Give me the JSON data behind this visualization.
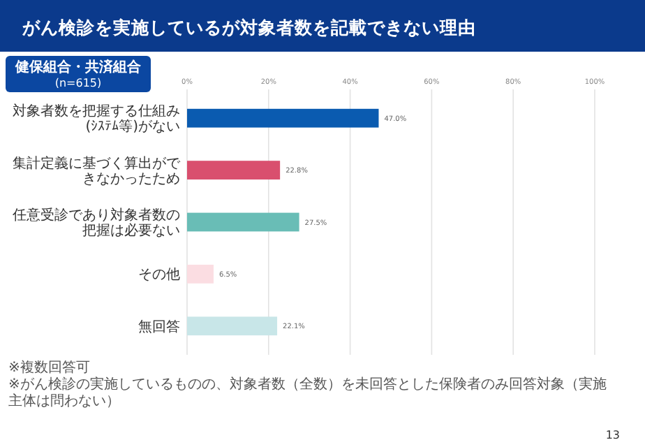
{
  "chart_data": {
    "type": "bar",
    "orientation": "horizontal",
    "title": "がん検診を実施しているが対象者数を記載できない理由",
    "subtitle": "健保組合・共済組合\n(n=615)",
    "categories": [
      "対象者数を把握する仕組み(ｼｽﾃﾑ等)がない",
      "集計定義に基づく算出ができなかったため",
      "任意受診であり対象者数の把握は必要ない",
      "その他",
      "無回答"
    ],
    "values": [
      47.0,
      22.8,
      27.5,
      6.5,
      22.1
    ],
    "colors": [
      "#0a5bb0",
      "#d94f6e",
      "#69bdb6",
      "#fbdde2",
      "#c8e6e8"
    ],
    "value_labels": [
      "47.0%",
      "22.8%",
      "27.5%",
      "6.5%",
      "22.1%"
    ],
    "xlim": [
      0,
      100
    ],
    "xticks": [
      {
        "value": 0,
        "label": "0%"
      },
      {
        "value": 20,
        "label": "20%"
      },
      {
        "value": 40,
        "label": "40%"
      },
      {
        "value": 60,
        "label": "60%"
      },
      {
        "value": 80,
        "label": "80%"
      },
      {
        "value": 100,
        "label": "100%"
      }
    ],
    "grid": "x",
    "annotations": [
      "※複数回答可",
      "※がん検診の実施しているものの、対象者数（全数）を未回答とした保険者のみ回答対象（実施主体は問わない）",
      "13"
    ]
  }
}
